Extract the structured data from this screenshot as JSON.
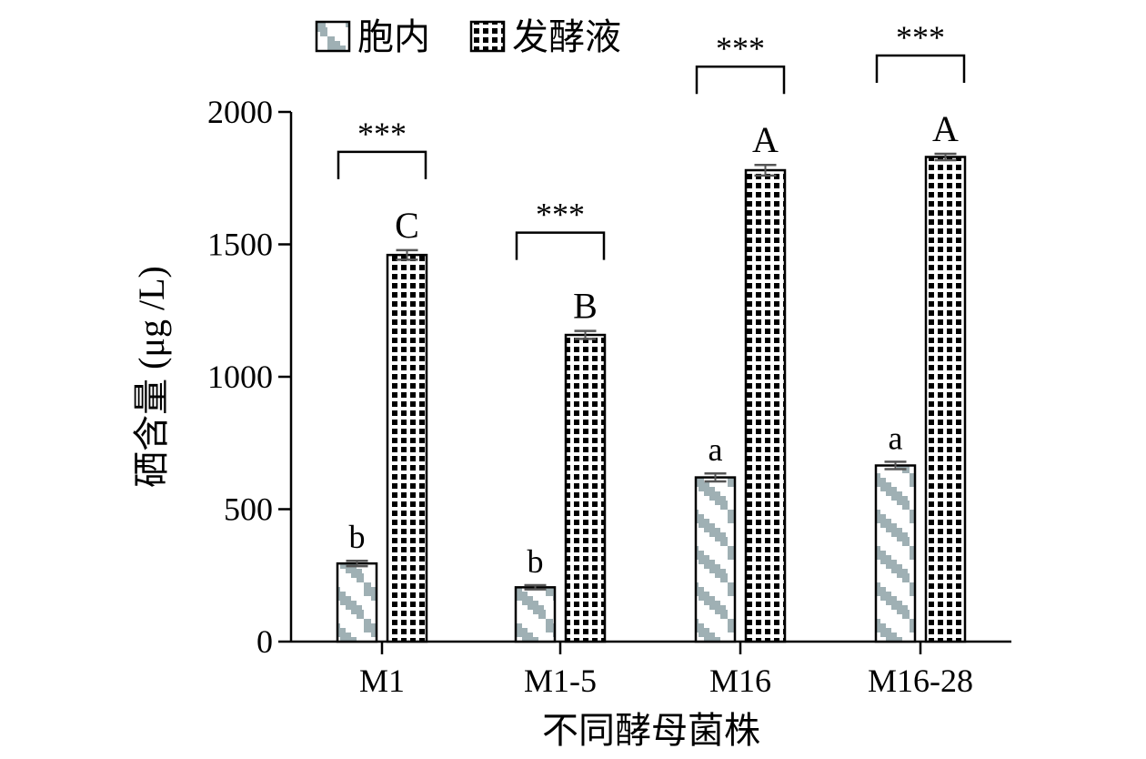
{
  "chart_data": {
    "type": "bar",
    "title": "",
    "xlabel": "不同酵母菌株",
    "ylabel": "硒含量 (μg /L)",
    "ylim": [
      0,
      2000
    ],
    "yticks": [
      "0",
      "500",
      "1000",
      "1500",
      "2000"
    ],
    "categories": [
      "M1",
      "M1-5",
      "M16",
      "M16-28"
    ],
    "series": [
      {
        "name": "胞内",
        "values": [
          295,
          205,
          620,
          665
        ],
        "errors": [
          10,
          8,
          15,
          14
        ],
        "letters": [
          "b",
          "b",
          "a",
          "a"
        ]
      },
      {
        "name": "发酵液",
        "values": [
          1460,
          1158,
          1780,
          1830
        ],
        "errors": [
          18,
          15,
          20,
          12
        ],
        "letters": [
          "C",
          "B",
          "A",
          "A"
        ]
      }
    ],
    "significance": [
      "***",
      "***",
      "***",
      "***"
    ],
    "legend_position": "top"
  }
}
